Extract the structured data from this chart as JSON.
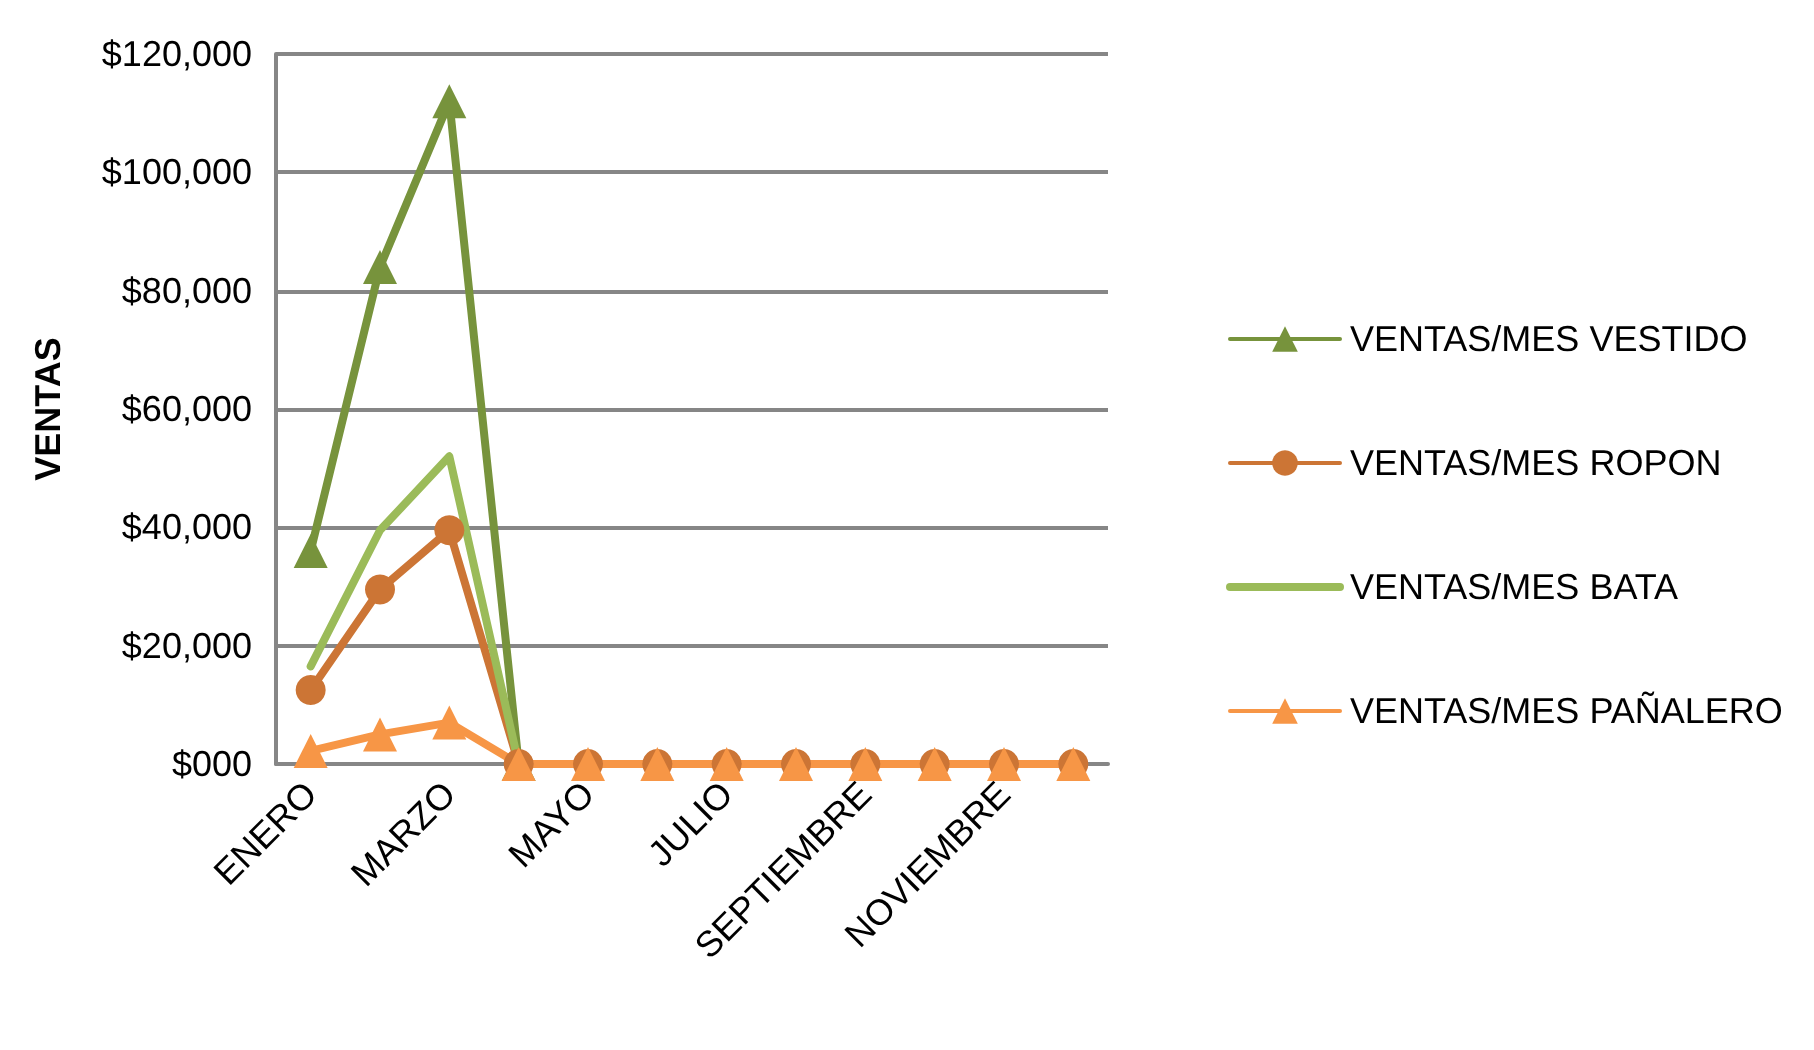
{
  "chart_data": {
    "type": "line",
    "ylabel": "VENTAS",
    "categories": [
      "ENERO",
      null,
      "MARZO",
      null,
      "MAYO",
      null,
      "JULIO",
      null,
      "SEPTIEMBRE",
      null,
      "NOVIEMBRE",
      null
    ],
    "series": [
      {
        "name": "VENTAS/MES VESTIDO",
        "color": "#77933c",
        "marker": "triangle",
        "values": [
          36000,
          84000,
          112000,
          0,
          null,
          null,
          null,
          null,
          null,
          null,
          null,
          null
        ]
      },
      {
        "name": "VENTAS/MES ROPON",
        "color": "#cc7535",
        "marker": "circle",
        "values": [
          12500,
          29500,
          39500,
          0,
          0,
          0,
          0,
          0,
          0,
          0,
          0,
          0
        ]
      },
      {
        "name": "VENTAS/MES BATA",
        "color": "#9bbb59",
        "marker": "none",
        "values": [
          16500,
          39500,
          52000,
          0,
          null,
          null,
          null,
          null,
          null,
          null,
          null,
          null
        ]
      },
      {
        "name": "VENTAS/MES PAÑALERO",
        "color": "#f79646",
        "marker": "triangle",
        "values": [
          2200,
          5000,
          7000,
          0,
          0,
          0,
          0,
          0,
          0,
          0,
          0,
          0
        ]
      }
    ],
    "ylim": [
      0,
      120000
    ],
    "yticks": [
      {
        "value": 0,
        "label": "$000"
      },
      {
        "value": 20000,
        "label": "$20,000"
      },
      {
        "value": 40000,
        "label": "$40,000"
      },
      {
        "value": 60000,
        "label": "$60,000"
      },
      {
        "value": 80000,
        "label": "$80,000"
      },
      {
        "value": 100000,
        "label": "$100,000"
      },
      {
        "value": 120000,
        "label": "$120,000"
      }
    ],
    "grid": "y",
    "legend": "right"
  }
}
